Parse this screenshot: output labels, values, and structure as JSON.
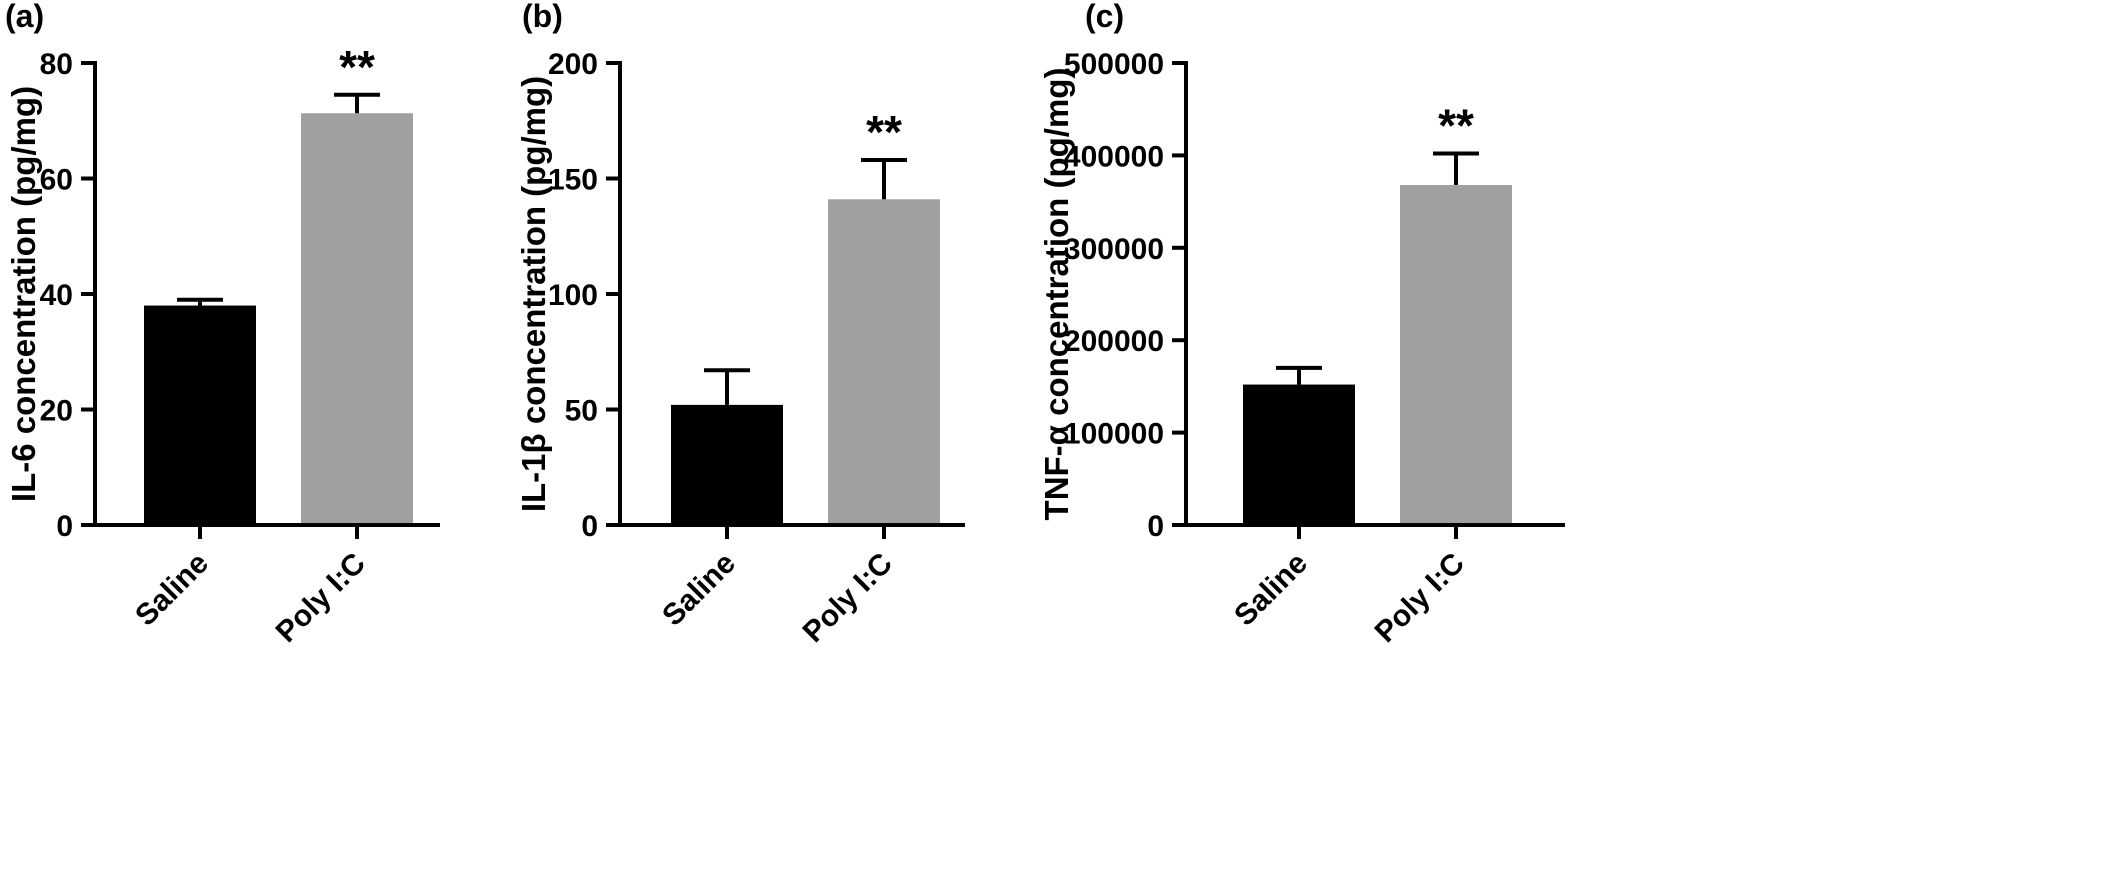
{
  "chart_data": [
    {
      "type": "bar",
      "panel_label": "(a)",
      "categories": [
        "Saline",
        "Poly I:C"
      ],
      "values": [
        38,
        71.3
      ],
      "error_upper": [
        39.0,
        74.5
      ],
      "bar_colors": [
        "#000000",
        "#a0a0a0"
      ],
      "significance": [
        "",
        "**"
      ],
      "ylabel": "IL-6 concentration (pg/mg)",
      "ylim": [
        0,
        80
      ],
      "yticks": [
        0,
        20,
        40,
        60,
        80
      ],
      "ytick_labels": [
        "0",
        "20",
        "40",
        "60",
        "80"
      ]
    },
    {
      "type": "bar",
      "panel_label": "(b)",
      "categories": [
        "Saline",
        "Poly I:C"
      ],
      "values": [
        52,
        141
      ],
      "error_upper": [
        67,
        158
      ],
      "bar_colors": [
        "#000000",
        "#a0a0a0"
      ],
      "significance": [
        "",
        "**"
      ],
      "ylabel": "IL-1β concentration (pg/mg)",
      "ylim": [
        0,
        200
      ],
      "yticks": [
        0,
        50,
        100,
        150,
        200
      ],
      "ytick_labels": [
        "0",
        "50",
        "100",
        "150",
        "200"
      ]
    },
    {
      "type": "bar",
      "panel_label": "(c)",
      "categories": [
        "Saline",
        "Poly I:C"
      ],
      "values": [
        152000,
        368000
      ],
      "error_upper": [
        170000,
        402000
      ],
      "bar_colors": [
        "#000000",
        "#a0a0a0"
      ],
      "significance": [
        "",
        "**"
      ],
      "ylabel": "TNF-α concentration (pg/mg)",
      "ylim": [
        0,
        500000
      ],
      "yticks": [
        0,
        100000,
        200000,
        300000,
        400000,
        500000
      ],
      "ytick_labels": [
        "0",
        "100000",
        "200000",
        "300000",
        "400000",
        "500000"
      ]
    }
  ]
}
